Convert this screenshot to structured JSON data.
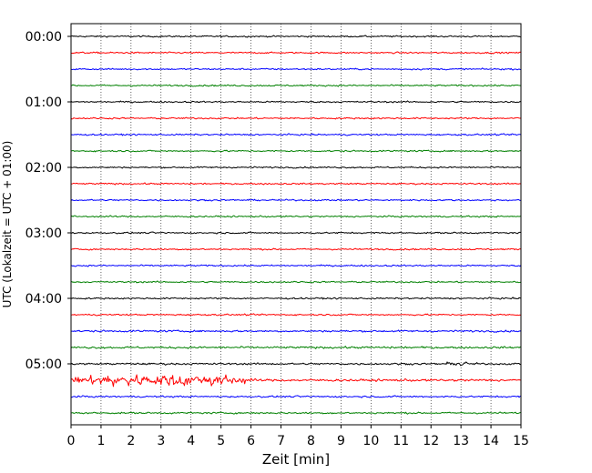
{
  "chart_data": {
    "type": "line",
    "title": "",
    "xlabel": "Zeit  [min]",
    "ylabel": "UTC (Lokalzeit = UTC + 01:00)",
    "xlim": [
      0,
      15
    ],
    "x_ticks": [
      0,
      1,
      2,
      3,
      4,
      5,
      6,
      7,
      8,
      9,
      10,
      11,
      12,
      13,
      14,
      15
    ],
    "x_tick_labels": [
      "0",
      "1",
      "2",
      "3",
      "4",
      "5",
      "6",
      "7",
      "8",
      "9",
      "10",
      "11",
      "12",
      "13",
      "14",
      "15"
    ],
    "y_ticks": [
      "00:00",
      "01:00",
      "02:00",
      "03:00",
      "04:00",
      "05:00"
    ],
    "grid": "vertical dotted lines at each minute",
    "trace_interval_min": 15,
    "trace_colors": [
      "#000000",
      "#ff0000",
      "#0000ff",
      "#008000"
    ],
    "traces_count": 24,
    "series": [
      {
        "start_utc": "00:00",
        "color": "#000000",
        "amplitude": 1
      },
      {
        "start_utc": "00:15",
        "color": "#ff0000",
        "amplitude": 1
      },
      {
        "start_utc": "00:30",
        "color": "#0000ff",
        "amplitude": 1
      },
      {
        "start_utc": "00:45",
        "color": "#008000",
        "amplitude": 1
      },
      {
        "start_utc": "01:00",
        "color": "#000000",
        "amplitude": 1
      },
      {
        "start_utc": "01:15",
        "color": "#ff0000",
        "amplitude": 1
      },
      {
        "start_utc": "01:30",
        "color": "#0000ff",
        "amplitude": 1
      },
      {
        "start_utc": "01:45",
        "color": "#008000",
        "amplitude": 1
      },
      {
        "start_utc": "02:00",
        "color": "#000000",
        "amplitude": 1
      },
      {
        "start_utc": "02:15",
        "color": "#ff0000",
        "amplitude": 1
      },
      {
        "start_utc": "02:30",
        "color": "#0000ff",
        "amplitude": 1
      },
      {
        "start_utc": "02:45",
        "color": "#008000",
        "amplitude": 1
      },
      {
        "start_utc": "03:00",
        "color": "#000000",
        "amplitude": 1
      },
      {
        "start_utc": "03:15",
        "color": "#ff0000",
        "amplitude": 1
      },
      {
        "start_utc": "03:30",
        "color": "#0000ff",
        "amplitude": 1
      },
      {
        "start_utc": "03:45",
        "color": "#008000",
        "amplitude": 1
      },
      {
        "start_utc": "04:00",
        "color": "#000000",
        "amplitude": 1
      },
      {
        "start_utc": "04:15",
        "color": "#ff0000",
        "amplitude": 1
      },
      {
        "start_utc": "04:30",
        "color": "#0000ff",
        "amplitude": 1.2
      },
      {
        "start_utc": "04:45",
        "color": "#008000",
        "amplitude": 1.3
      },
      {
        "start_utc": "05:00",
        "color": "#000000",
        "amplitude": 1.2
      },
      {
        "start_utc": "05:15",
        "color": "#ff0000",
        "amplitude": 1.5
      },
      {
        "start_utc": "05:30",
        "color": "#0000ff",
        "amplitude": 1.1
      },
      {
        "start_utc": "05:45",
        "color": "#008000",
        "amplitude": 1.1
      }
    ],
    "events": [
      {
        "trace_start_utc": "05:00",
        "x_from": 12.2,
        "x_to": 13.6,
        "peak_amplitude": 3
      },
      {
        "trace_start_utc": "05:15",
        "x_from": 0.0,
        "x_to": 6.0,
        "peak_amplitude": 11
      }
    ]
  }
}
